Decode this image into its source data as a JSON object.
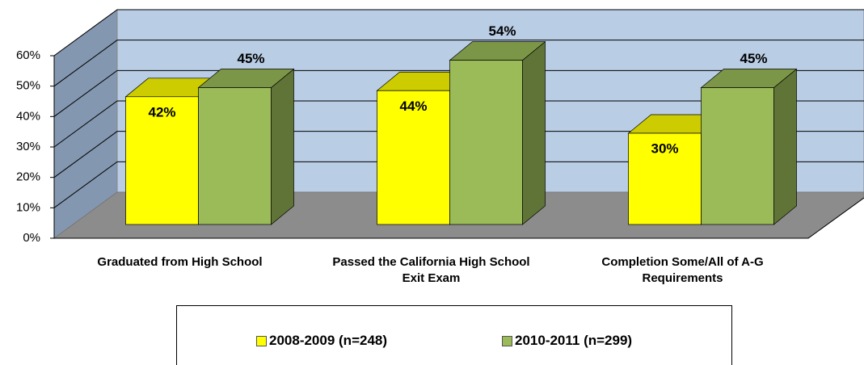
{
  "chart_data": {
    "type": "bar3d",
    "categories": [
      "Graduated from High School",
      "Passed the California High School Exit Exam",
      "Completion Some/All of A-G Requirements"
    ],
    "series": [
      {
        "name": "2008-2009 (n=248)",
        "color": "#ffff00",
        "values": [
          42,
          44,
          30
        ],
        "value_labels": [
          "42%",
          "44%",
          "30%"
        ]
      },
      {
        "name": "2010-2011 (n=299)",
        "color": "#9bbb59",
        "values": [
          45,
          54,
          45
        ],
        "value_labels": [
          "45%",
          "54%",
          "45%"
        ]
      }
    ],
    "ylim": [
      0,
      60
    ],
    "yticks": [
      {
        "value": 0,
        "label": "0%"
      },
      {
        "value": 10,
        "label": "10%"
      },
      {
        "value": 20,
        "label": "20%"
      },
      {
        "value": 30,
        "label": "30%"
      },
      {
        "value": 40,
        "label": "40%"
      },
      {
        "value": 50,
        "label": "50%"
      },
      {
        "value": 60,
        "label": "60%"
      }
    ],
    "grid": true,
    "legend": "bottom"
  }
}
